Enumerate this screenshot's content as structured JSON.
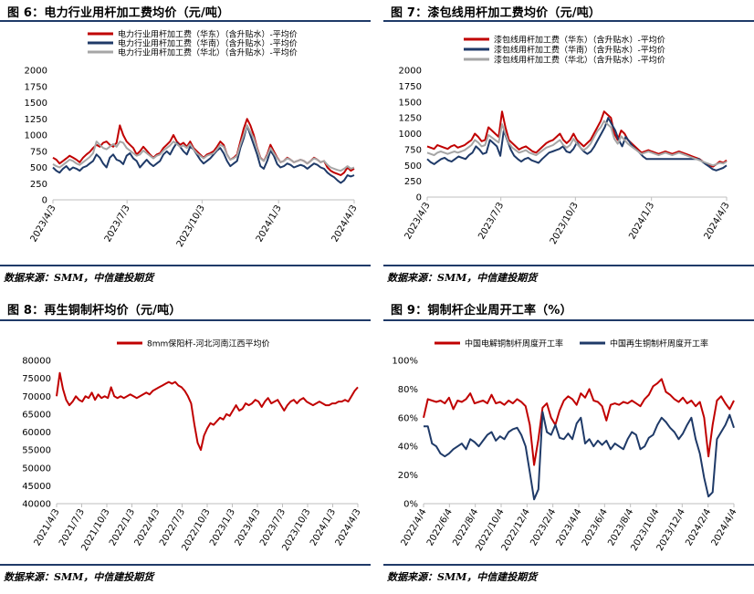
{
  "source_text": "数据来源：SMM，中信建投期货",
  "chart_data": [
    {
      "id": "fig6",
      "type": "line",
      "title": "图 6：电力行业用杆加工费均价（元/吨）",
      "ylim": [
        0,
        2000
      ],
      "yticks": [
        0,
        250,
        500,
        750,
        1000,
        1250,
        1500,
        1750,
        2000
      ],
      "x_tick_labels": [
        "2023/4/3",
        "2023/7/3",
        "2023/10/3",
        "2024/1/3",
        "2024/4/3"
      ],
      "x_tick_pos": [
        0,
        0.246,
        0.495,
        0.749,
        1.0
      ],
      "series": [
        {
          "name": "电力行业用杆加工费（华东）（含升贴水）-平均价",
          "color": "#c00000",
          "values": [
            650,
            620,
            560,
            600,
            640,
            680,
            650,
            620,
            580,
            650,
            700,
            740,
            800,
            850,
            820,
            880,
            900,
            850,
            820,
            880,
            1150,
            1000,
            900,
            850,
            800,
            700,
            750,
            820,
            760,
            700,
            650,
            700,
            720,
            800,
            850,
            900,
            1000,
            900,
            850,
            880,
            820,
            900,
            800,
            750,
            700,
            650,
            700,
            720,
            750,
            820,
            900,
            850,
            700,
            620,
            650,
            700,
            900,
            1100,
            1250,
            1150,
            1000,
            800,
            650,
            600,
            700,
            850,
            750,
            650,
            580,
            600,
            650,
            620,
            580,
            600,
            620,
            600,
            560,
            600,
            650,
            620,
            580,
            600,
            500,
            450,
            420,
            400,
            380,
            420,
            500,
            450,
            480
          ]
        },
        {
          "name": "电力行业用杆加工费（华南）（含升贴水）-平均价",
          "color": "#1f3a68",
          "values": [
            500,
            450,
            420,
            480,
            520,
            460,
            500,
            480,
            450,
            500,
            520,
            560,
            600,
            700,
            650,
            560,
            500,
            650,
            700,
            620,
            600,
            550,
            680,
            720,
            640,
            600,
            500,
            560,
            620,
            560,
            520,
            560,
            600,
            700,
            750,
            700,
            800,
            880,
            820,
            750,
            700,
            820,
            780,
            700,
            620,
            560,
            600,
            640,
            700,
            760,
            800,
            720,
            600,
            520,
            560,
            600,
            800,
            950,
            1150,
            1000,
            850,
            700,
            520,
            480,
            600,
            760,
            680,
            550,
            500,
            520,
            560,
            540,
            500,
            520,
            540,
            520,
            480,
            520,
            560,
            540,
            500,
            480,
            420,
            380,
            350,
            300,
            260,
            300,
            380,
            360,
            380
          ]
        },
        {
          "name": "电力行业用杆加工费（华北）（含升贴水）-平均价",
          "color": "#a6a6a6",
          "values": [
            550,
            520,
            500,
            540,
            580,
            620,
            600,
            560,
            540,
            580,
            620,
            660,
            720,
            900,
            850,
            800,
            780,
            820,
            860,
            820,
            900,
            880,
            800,
            760,
            720,
            680,
            700,
            760,
            720,
            680,
            640,
            680,
            700,
            760,
            800,
            840,
            900,
            860,
            820,
            840,
            800,
            860,
            780,
            720,
            680,
            640,
            680,
            700,
            720,
            780,
            850,
            820,
            700,
            620,
            640,
            680,
            850,
            1000,
            1150,
            1050,
            950,
            780,
            640,
            600,
            680,
            800,
            720,
            640,
            580,
            600,
            640,
            620,
            580,
            600,
            620,
            600,
            560,
            600,
            640,
            620,
            580,
            600,
            540,
            500,
            480,
            460,
            450,
            480,
            520,
            480,
            500
          ]
        }
      ]
    },
    {
      "id": "fig7",
      "type": "line",
      "title": "图 7：漆包线用杆加工费均价（元/吨）",
      "ylim": [
        0,
        2000
      ],
      "yticks": [
        0,
        250,
        500,
        750,
        1000,
        1250,
        1500,
        1750,
        2000
      ],
      "x_tick_labels": [
        "2023/4/3",
        "2023/7/3",
        "2023/10/3",
        "2024/1/3",
        "2024/4/3"
      ],
      "x_tick_pos": [
        0,
        0.246,
        0.495,
        0.749,
        1.0
      ],
      "series": [
        {
          "name": "漆包线用杆加工费（华东）（含升贴水）-平均价",
          "color": "#c00000",
          "values": [
            800,
            780,
            760,
            820,
            800,
            780,
            760,
            800,
            820,
            780,
            800,
            820,
            860,
            900,
            1000,
            950,
            880,
            900,
            1100,
            1050,
            1000,
            950,
            1350,
            1100,
            900,
            850,
            800,
            750,
            780,
            800,
            760,
            720,
            700,
            750,
            800,
            850,
            880,
            900,
            950,
            1000,
            900,
            850,
            900,
            1000,
            900,
            850,
            800,
            850,
            900,
            1000,
            1100,
            1200,
            1350,
            1300,
            1250,
            1000,
            900,
            1050,
            1000,
            900,
            850,
            800,
            750,
            700,
            720,
            740,
            720,
            700,
            680,
            700,
            720,
            700,
            680,
            700,
            720,
            700,
            680,
            660,
            640,
            620,
            600,
            560,
            520,
            500,
            480,
            520,
            560,
            540,
            580
          ]
        },
        {
          "name": "漆包线用杆加工费（华南）（含升贴水）-平均价",
          "color": "#1f3a68",
          "values": [
            600,
            550,
            520,
            560,
            600,
            620,
            580,
            560,
            600,
            640,
            620,
            600,
            660,
            700,
            800,
            750,
            680,
            700,
            900,
            850,
            800,
            650,
            1050,
            900,
            750,
            650,
            600,
            560,
            600,
            620,
            580,
            560,
            540,
            600,
            650,
            700,
            720,
            740,
            760,
            800,
            720,
            700,
            760,
            860,
            780,
            720,
            680,
            720,
            800,
            900,
            1000,
            1100,
            1250,
            1150,
            1050,
            900,
            800,
            950,
            880,
            800,
            750,
            700,
            640,
            600,
            600,
            600,
            600,
            600,
            600,
            600,
            600,
            600,
            600,
            600,
            600,
            600,
            600,
            600,
            600,
            560,
            520,
            480,
            440,
            420,
            440,
            460,
            500
          ]
        },
        {
          "name": "漆包线用杆加工费（华北）（含升贴水）-平均价",
          "color": "#a6a6a6",
          "values": [
            700,
            680,
            660,
            700,
            720,
            700,
            680,
            700,
            720,
            700,
            720,
            740,
            780,
            820,
            900,
            860,
            800,
            820,
            980,
            940,
            900,
            860,
            1150,
            1000,
            850,
            780,
            740,
            700,
            720,
            740,
            700,
            680,
            660,
            700,
            740,
            780,
            800,
            820,
            860,
            900,
            820,
            780,
            820,
            920,
            840,
            780,
            740,
            780,
            840,
            940,
            1040,
            1100,
            1200,
            1150,
            1100,
            920,
            840,
            960,
            900,
            840,
            800,
            760,
            720,
            680,
            700,
            720,
            700,
            680,
            660,
            680,
            700,
            680,
            660,
            680,
            700,
            680,
            660,
            640,
            620,
            600,
            580,
            560,
            540,
            520,
            500,
            520,
            540,
            530,
            560
          ]
        }
      ]
    },
    {
      "id": "fig8",
      "type": "line",
      "title": "图 8：再生铜制杆均价（元/吨）",
      "ylim": [
        40000,
        80000
      ],
      "yticks": [
        40000,
        45000,
        50000,
        55000,
        60000,
        65000,
        70000,
        75000,
        80000
      ],
      "x_tick_labels": [
        "2021/4/3",
        "2021/7/3",
        "2021/10/3",
        "2022/1/3",
        "2022/4/3",
        "2022/7/3",
        "2022/10/3",
        "2023/1/3",
        "2023/4/3",
        "2023/7/3",
        "2023/10/3",
        "2024/1/3",
        "2024/4/3"
      ],
      "x_tick_pos": [
        0,
        0.0833,
        0.1667,
        0.25,
        0.3333,
        0.4167,
        0.5,
        0.5833,
        0.6667,
        0.75,
        0.8333,
        0.9167,
        1.0
      ],
      "series": [
        {
          "name": "8mm保阳杆-河北河南江西平均价",
          "color": "#c00000",
          "values": [
            70000,
            76500,
            72000,
            69000,
            67500,
            68500,
            70000,
            69000,
            68500,
            70000,
            69500,
            71000,
            69000,
            70500,
            69500,
            70000,
            69500,
            72500,
            70000,
            69500,
            70000,
            69500,
            70000,
            70500,
            70000,
            69500,
            70000,
            70500,
            71000,
            70500,
            71500,
            72000,
            72500,
            73000,
            73500,
            74000,
            73500,
            74000,
            73000,
            72500,
            71500,
            70000,
            68000,
            62000,
            57000,
            55000,
            59000,
            61000,
            62500,
            62000,
            63000,
            64000,
            63500,
            65000,
            64500,
            66000,
            67500,
            66000,
            66500,
            68000,
            67500,
            68000,
            69000,
            68500,
            67000,
            68500,
            69500,
            68000,
            68500,
            69000,
            67500,
            66000,
            67500,
            68500,
            69000,
            68000,
            69000,
            69500,
            68500,
            68000,
            67500,
            68000,
            68500,
            68000,
            67500,
            67500,
            68000,
            68000,
            68500,
            68500,
            69000,
            68500,
            70000,
            71500,
            72500
          ]
        }
      ]
    },
    {
      "id": "fig9",
      "type": "line",
      "title": "图 9：铜制杆企业周开工率（%）",
      "ylim": [
        0,
        100
      ],
      "yticks": [
        0,
        20,
        40,
        60,
        80,
        100
      ],
      "ytick_labels": [
        "0%",
        "20%",
        "40%",
        "60%",
        "80%",
        "100%"
      ],
      "x_tick_labels": [
        "2022/4/4",
        "2022/6/4",
        "2022/8/4",
        "2022/10/4",
        "2022/12/4",
        "2023/2/4",
        "2023/4/4",
        "2023/6/4",
        "2023/8/4",
        "2023/10/4",
        "2023/12/4",
        "2024/2/4",
        "2024/4/4"
      ],
      "x_tick_pos": [
        0,
        0.0833,
        0.1667,
        0.25,
        0.3333,
        0.4167,
        0.5,
        0.5833,
        0.6667,
        0.75,
        0.8333,
        0.9167,
        1.0
      ],
      "series": [
        {
          "name": "中国电解铜制杆周度开工率",
          "color": "#c00000",
          "values": [
            60,
            73,
            72,
            71,
            72,
            70,
            74,
            66,
            72,
            71,
            73,
            77,
            70,
            71,
            72,
            70,
            76,
            70,
            71,
            69,
            72,
            70,
            73,
            71,
            68,
            55,
            27,
            45,
            67,
            70,
            60,
            55,
            65,
            72,
            75,
            73,
            69,
            77,
            74,
            80,
            72,
            71,
            68,
            58,
            69,
            70,
            69,
            71,
            70,
            72,
            70,
            68,
            73,
            76,
            82,
            84,
            87,
            78,
            76,
            73,
            71,
            74,
            70,
            72,
            68,
            71,
            60,
            33,
            55,
            72,
            75,
            70,
            66,
            72
          ]
        },
        {
          "name": "中国再生铜制杆周度开工率",
          "color": "#1f3a68",
          "values": [
            54,
            54,
            42,
            40,
            35,
            33,
            35,
            38,
            40,
            42,
            38,
            45,
            43,
            40,
            44,
            48,
            50,
            44,
            47,
            45,
            50,
            52,
            53,
            48,
            40,
            22,
            3,
            10,
            64,
            50,
            48,
            55,
            46,
            45,
            49,
            45,
            56,
            60,
            42,
            45,
            40,
            44,
            41,
            44,
            38,
            42,
            40,
            38,
            45,
            50,
            48,
            38,
            40,
            46,
            48,
            55,
            60,
            57,
            53,
            50,
            45,
            49,
            55,
            60,
            45,
            35,
            18,
            5,
            8,
            45,
            50,
            55,
            62,
            53
          ]
        }
      ]
    }
  ]
}
